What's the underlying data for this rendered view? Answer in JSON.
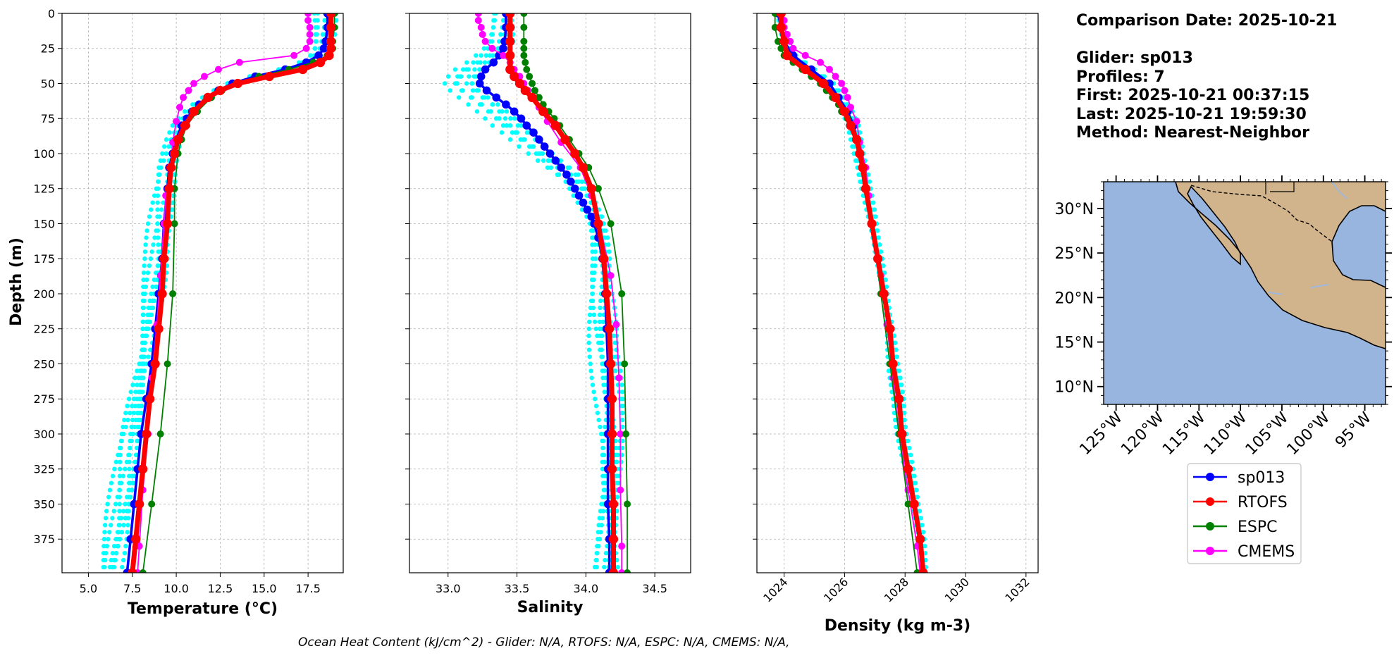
{
  "chart_data": [
    {
      "type": "line",
      "xlabel": "Temperature (°C)",
      "ylabel": "Depth (m)",
      "xlim": [
        3.5,
        19.5
      ],
      "ylim": [
        399,
        0
      ],
      "xticks": [
        5.0,
        7.5,
        10.0,
        12.5,
        15.0,
        17.5
      ],
      "yticks": [
        0,
        25,
        50,
        75,
        100,
        125,
        150,
        175,
        200,
        225,
        250,
        275,
        300,
        325,
        350,
        375
      ],
      "grid": true,
      "series": [
        {
          "name": "sp013",
          "role": "mean",
          "color": "#0000ff",
          "depth": [
            0,
            10,
            20,
            25,
            30,
            35,
            40,
            45,
            50,
            55,
            60,
            65,
            70,
            75,
            80,
            90,
            100,
            110,
            125,
            150,
            175,
            200,
            225,
            250,
            275,
            300,
            325,
            350,
            375,
            399
          ],
          "values": [
            18.6,
            18.6,
            18.5,
            18.4,
            18.1,
            17.4,
            16.2,
            14.5,
            13.2,
            12.4,
            11.8,
            11.3,
            10.9,
            10.6,
            10.3,
            10.0,
            9.8,
            9.6,
            9.5,
            9.3,
            9.2,
            9.0,
            8.8,
            8.6,
            8.3,
            8.0,
            7.8,
            7.6,
            7.4,
            7.2
          ]
        },
        {
          "name": "RTOFS",
          "color": "#ff0000",
          "depth": [
            0,
            10,
            20,
            25,
            30,
            35,
            40,
            45,
            50,
            55,
            60,
            70,
            80,
            90,
            100,
            110,
            125,
            150,
            175,
            200,
            225,
            250,
            275,
            300,
            325,
            350,
            375,
            399
          ],
          "values": [
            18.8,
            18.8,
            18.8,
            18.8,
            18.7,
            18.2,
            17.2,
            15.3,
            13.5,
            12.5,
            11.8,
            11.0,
            10.5,
            10.1,
            9.9,
            9.7,
            9.6,
            9.5,
            9.3,
            9.2,
            9.0,
            8.8,
            8.5,
            8.3,
            8.1,
            7.9,
            7.7,
            7.5
          ]
        },
        {
          "name": "ESPC",
          "color": "#008000",
          "depth": [
            0,
            10,
            20,
            25,
            30,
            35,
            40,
            45,
            50,
            55,
            60,
            70,
            80,
            90,
            100,
            125,
            150,
            200,
            250,
            300,
            350,
            399
          ],
          "values": [
            19.0,
            19.0,
            18.9,
            18.9,
            18.6,
            17.8,
            16.4,
            14.7,
            13.4,
            12.6,
            12.0,
            11.2,
            10.6,
            10.3,
            10.1,
            9.9,
            9.9,
            9.8,
            9.5,
            9.1,
            8.6,
            8.1
          ]
        },
        {
          "name": "CMEMS",
          "color": "#ff00ff",
          "depth": [
            0,
            5,
            10,
            15,
            20,
            25,
            30,
            35,
            40,
            45,
            50,
            55,
            60,
            67,
            77,
            92,
            110,
            130,
            150,
            187,
            222,
            260,
            300,
            340,
            380,
            399
          ],
          "values": [
            17.5,
            17.5,
            17.6,
            17.6,
            17.6,
            17.4,
            16.7,
            13.6,
            12.4,
            11.6,
            11.0,
            10.7,
            10.4,
            10.2,
            10.0,
            9.8,
            9.7,
            9.4,
            9.3,
            9.1,
            8.9,
            8.6,
            8.4,
            8.1,
            7.9,
            7.8
          ]
        }
      ]
    },
    {
      "type": "line",
      "xlabel": "Salinity",
      "xlim": [
        32.72,
        34.76
      ],
      "ylim": [
        399,
        0
      ],
      "xticks": [
        33.0,
        33.5,
        34.0,
        34.5
      ],
      "grid": true,
      "series": [
        {
          "name": "sp013",
          "role": "mean",
          "color": "#0000ff",
          "depth": [
            0,
            10,
            20,
            25,
            30,
            35,
            40,
            45,
            50,
            55,
            60,
            65,
            70,
            75,
            80,
            85,
            90,
            95,
            100,
            105,
            110,
            115,
            120,
            125,
            130,
            135,
            140,
            145,
            150,
            160,
            175,
            200,
            225,
            250,
            275,
            300,
            325,
            350,
            375,
            399
          ],
          "values": [
            33.42,
            33.42,
            33.41,
            33.4,
            33.37,
            33.33,
            33.27,
            33.24,
            33.23,
            33.28,
            33.35,
            33.42,
            33.48,
            33.53,
            33.57,
            33.62,
            33.66,
            33.7,
            33.74,
            33.78,
            33.82,
            33.86,
            33.89,
            33.92,
            33.95,
            33.98,
            34.01,
            34.04,
            34.06,
            34.09,
            34.12,
            34.14,
            34.15,
            34.16,
            34.16,
            34.16,
            34.16,
            34.16,
            34.17,
            34.17
          ]
        },
        {
          "name": "RTOFS",
          "color": "#ff0000",
          "depth": [
            0,
            10,
            20,
            30,
            40,
            45,
            50,
            55,
            60,
            70,
            80,
            90,
            100,
            110,
            125,
            150,
            175,
            200,
            225,
            250,
            275,
            300,
            325,
            350,
            375,
            399
          ],
          "values": [
            33.45,
            33.45,
            33.45,
            33.45,
            33.45,
            33.48,
            33.52,
            33.56,
            33.61,
            33.69,
            33.78,
            33.85,
            33.92,
            33.98,
            34.04,
            34.09,
            34.13,
            34.15,
            34.17,
            34.18,
            34.19,
            34.19,
            34.19,
            34.2,
            34.2,
            34.2
          ]
        },
        {
          "name": "ESPC",
          "color": "#008000",
          "depth": [
            0,
            10,
            20,
            25,
            30,
            35,
            40,
            45,
            50,
            55,
            60,
            65,
            70,
            75,
            80,
            90,
            100,
            110,
            125,
            150,
            200,
            250,
            300,
            350,
            399
          ],
          "values": [
            33.55,
            33.55,
            33.55,
            33.55,
            33.55,
            33.56,
            33.57,
            33.59,
            33.61,
            33.63,
            33.66,
            33.69,
            33.73,
            33.77,
            33.81,
            33.88,
            33.95,
            34.02,
            34.09,
            34.18,
            34.26,
            34.28,
            34.29,
            34.3,
            34.3
          ]
        },
        {
          "name": "CMEMS",
          "color": "#ff00ff",
          "depth": [
            0,
            5,
            10,
            15,
            20,
            25,
            30,
            35,
            40,
            45,
            50,
            55,
            60,
            67,
            77,
            92,
            110,
            130,
            150,
            187,
            222,
            260,
            300,
            340,
            380,
            399
          ],
          "values": [
            33.22,
            33.22,
            33.24,
            33.25,
            33.27,
            33.32,
            33.4,
            33.45,
            33.48,
            33.52,
            33.55,
            33.58,
            33.62,
            33.66,
            33.72,
            33.82,
            33.96,
            34.04,
            34.1,
            34.18,
            34.22,
            34.24,
            34.25,
            34.25,
            34.26,
            34.26
          ]
        }
      ]
    },
    {
      "type": "line",
      "xlabel": "Density (kg m-3)",
      "xlim": [
        1023.1,
        1032.4
      ],
      "ylim": [
        399,
        0
      ],
      "xticks": [
        1024,
        1026,
        1028,
        1030,
        1032
      ],
      "grid": true,
      "series": [
        {
          "name": "sp013",
          "role": "mean",
          "color": "#0000ff",
          "depth": [
            0,
            10,
            20,
            30,
            40,
            50,
            60,
            70,
            80,
            90,
            100,
            110,
            125,
            150,
            175,
            200,
            225,
            250,
            275,
            300,
            325,
            350,
            375,
            399
          ],
          "values": [
            1023.8,
            1023.9,
            1024.0,
            1024.3,
            1024.9,
            1025.5,
            1025.8,
            1026.1,
            1026.3,
            1026.4,
            1026.5,
            1026.6,
            1026.7,
            1026.9,
            1027.1,
            1027.3,
            1027.5,
            1027.6,
            1027.8,
            1027.9,
            1028.1,
            1028.3,
            1028.5,
            1028.6
          ]
        },
        {
          "name": "RTOFS",
          "color": "#ff0000",
          "depth": [
            0,
            10,
            20,
            30,
            40,
            50,
            60,
            70,
            80,
            90,
            100,
            110,
            125,
            150,
            175,
            200,
            225,
            250,
            275,
            300,
            325,
            350,
            375,
            399
          ],
          "values": [
            1023.9,
            1023.9,
            1024.0,
            1024.1,
            1024.7,
            1025.3,
            1025.7,
            1026.0,
            1026.2,
            1026.4,
            1026.5,
            1026.6,
            1026.7,
            1026.9,
            1027.1,
            1027.3,
            1027.5,
            1027.6,
            1027.8,
            1027.9,
            1028.1,
            1028.3,
            1028.5,
            1028.6
          ]
        },
        {
          "name": "ESPC",
          "color": "#008000",
          "depth": [
            0,
            10,
            20,
            25,
            30,
            35,
            40,
            45,
            50,
            55,
            60,
            65,
            70,
            75,
            80,
            90,
            100,
            110,
            125,
            150,
            200,
            250,
            300,
            350,
            399
          ],
          "values": [
            1023.7,
            1023.7,
            1023.8,
            1023.9,
            1024.0,
            1024.3,
            1024.6,
            1024.9,
            1025.2,
            1025.4,
            1025.6,
            1025.8,
            1025.9,
            1026.1,
            1026.2,
            1026.4,
            1026.5,
            1026.6,
            1026.7,
            1026.9,
            1027.2,
            1027.5,
            1027.8,
            1028.1,
            1028.4
          ]
        },
        {
          "name": "CMEMS",
          "color": "#ff00ff",
          "depth": [
            0,
            5,
            10,
            15,
            20,
            25,
            30,
            35,
            40,
            45,
            50,
            55,
            60,
            67,
            77,
            92,
            110,
            130,
            150,
            187,
            222,
            260,
            300,
            340,
            380,
            399
          ],
          "values": [
            1023.9,
            1024.0,
            1024.0,
            1024.1,
            1024.2,
            1024.3,
            1024.7,
            1025.2,
            1025.5,
            1025.7,
            1025.9,
            1026.0,
            1026.1,
            1026.2,
            1026.4,
            1026.5,
            1026.7,
            1026.8,
            1026.9,
            1027.2,
            1027.4,
            1027.6,
            1027.8,
            1028.1,
            1028.4,
            1028.5
          ]
        }
      ]
    }
  ],
  "legend": {
    "position": "bottom-right",
    "entries": [
      {
        "label": "sp013",
        "color": "#0000ff"
      },
      {
        "label": "RTOFS",
        "color": "#ff0000"
      },
      {
        "label": "ESPC",
        "color": "#008000"
      },
      {
        "label": "CMEMS",
        "color": "#ff00ff"
      }
    ]
  },
  "info": {
    "date_line": "Comparison Date: 2025-10-21",
    "glider_line": "Glider: sp013",
    "profiles_line": "Profiles: 7",
    "first_line": "First: 2025-10-21 00:37:15",
    "last_line": "Last: 2025-10-21 19:59:30",
    "method_line": "Method: Nearest-Neighbor"
  },
  "map": {
    "lat_labels": [
      "30°N",
      "25°N",
      "20°N",
      "15°N",
      "10°N"
    ],
    "lon_labels": [
      "125°W",
      "120°W",
      "115°W",
      "110°W",
      "105°W",
      "100°W",
      "95°W"
    ],
    "ocean_color": "#98b5e0",
    "land_color": "#d2b48c"
  },
  "footer": {
    "text": "Ocean Heat Content (kJ/cm^2) - Glider: N/A,  RTOFS: N/A,  ESPC: N/A,  CMEMS: N/A,"
  },
  "colors": {
    "glider_profiles": "#00ffff"
  }
}
